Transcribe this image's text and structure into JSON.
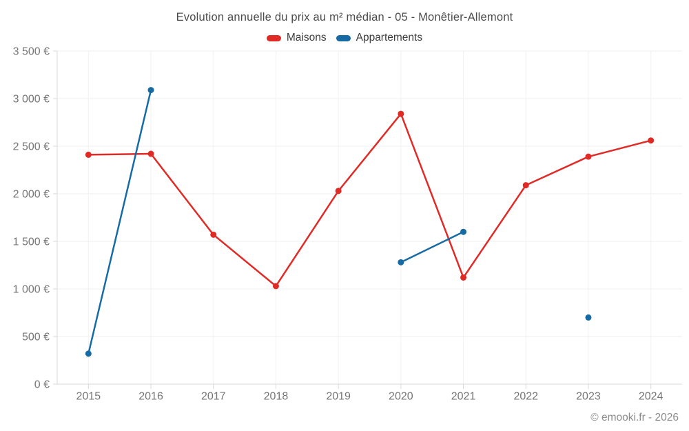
{
  "title": "Evolution annuelle du prix au m² médian - 05 - Monêtier-Allemont",
  "footer": {
    "text": "© emooki.fr - 2026"
  },
  "colors": {
    "maisons": "#e02a26",
    "appartements": "#176ba5",
    "grid": "#efefef",
    "axis": "#d8d8d8",
    "tick_text": "#757575"
  },
  "chart_data": {
    "type": "line",
    "title": "Evolution annuelle du prix au m² médian - 05 - Monêtier-Allemont",
    "categories": [
      "2015",
      "2016",
      "2017",
      "2018",
      "2019",
      "2020",
      "2021",
      "2022",
      "2023",
      "2024"
    ],
    "series": [
      {
        "name": "Maisons",
        "color": "#e02a26",
        "values": [
          2410,
          2420,
          1570,
          1030,
          2030,
          2840,
          1120,
          2090,
          2390,
          2560
        ]
      },
      {
        "name": "Appartements",
        "color": "#176ba5",
        "values": [
          320,
          3090,
          null,
          null,
          null,
          1280,
          1600,
          null,
          700,
          null
        ]
      }
    ],
    "xlabel": "",
    "ylabel": "",
    "ylim": [
      0,
      3500
    ],
    "ytick_step": 500,
    "ytick_labels": [
      "0 €",
      "500 €",
      "1 000 €",
      "1 500 €",
      "2 000 €",
      "2 500 €",
      "3 000 €",
      "3 500 €"
    ],
    "grid": true,
    "legend_position": "top",
    "footer": "© emooki.fr - 2026"
  }
}
